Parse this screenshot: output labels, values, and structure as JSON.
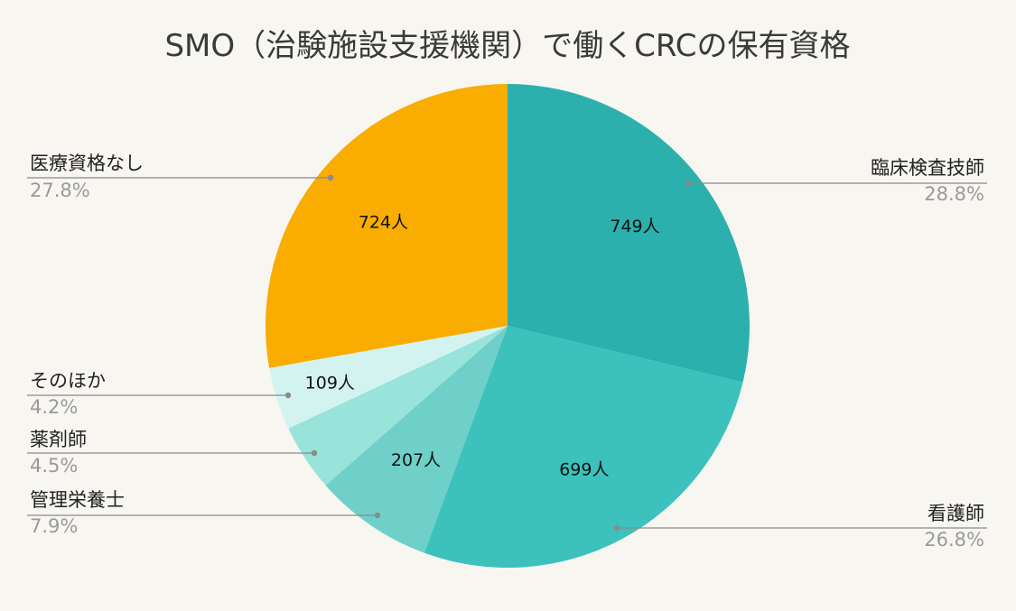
{
  "chart_data": {
    "type": "pie",
    "title": "SMO（治験施設支援機関）で働くCRCの保有資格",
    "slices": [
      {
        "label": "臨床検査技師",
        "value": 749,
        "value_label": "749人",
        "percent_label": "28.8%",
        "color": "#2bb0ad"
      },
      {
        "label": "看護師",
        "value": 699,
        "value_label": "699人",
        "percent_label": "26.8%",
        "color": "#3cc1bc"
      },
      {
        "label": "管理栄養士",
        "value": 207,
        "value_label": "207人",
        "percent_label": "7.9%",
        "color": "#6fd0c9"
      },
      {
        "label": "薬剤師",
        "value": 117,
        "value_label": "",
        "percent_label": "4.5%",
        "color": "#98e3da"
      },
      {
        "label": "そのほか",
        "value": 109,
        "value_label": "109人",
        "percent_label": "4.2%",
        "color": "#d3f3f1"
      },
      {
        "label": "医療資格なし",
        "value": 724,
        "value_label": "724人",
        "percent_label": "27.8%",
        "color": "#f9ad00"
      }
    ],
    "start_angle": "12 o'clock",
    "direction": "clockwise",
    "label_sides": [
      "right",
      "right",
      "left",
      "left",
      "left",
      "left"
    ]
  }
}
